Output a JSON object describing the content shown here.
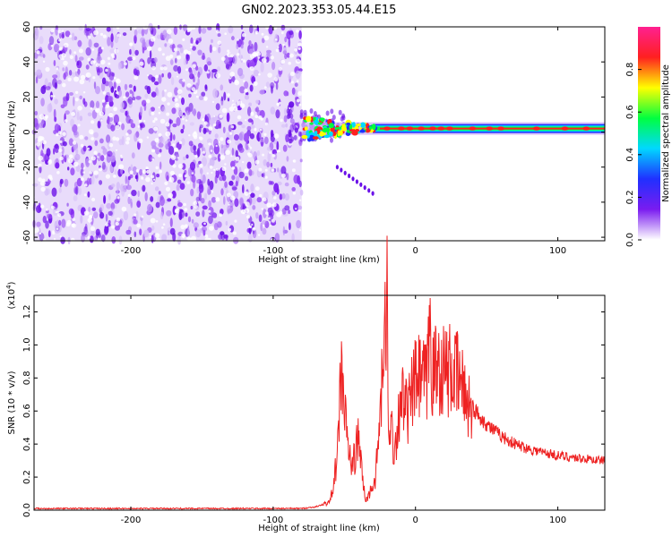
{
  "title": "GN02.2023.353.05.44.E15",
  "colors": {
    "snr_line": "#ee2222",
    "axis": "#000000",
    "spec_noise": "#7a1cf0",
    "spec_signal_core": "#ff2020",
    "spec_signal_edge": "#2060ff"
  },
  "chart_data": [
    {
      "type": "heatmap",
      "title": "GN02.2023.353.05.44.E15",
      "xlabel": "Height of straight line (km)",
      "ylabel": "Frequency (Hz)",
      "xlim": [
        -268,
        133
      ],
      "ylim": [
        -62,
        60
      ],
      "x_ticks": [
        -200,
        -100,
        0,
        100
      ],
      "y_ticks": [
        -60,
        -40,
        -20,
        0,
        20,
        40,
        60
      ],
      "colorbar": {
        "label": "Normalized spectral amplitude",
        "range": [
          0,
          1
        ],
        "ticks": [
          "0.0",
          "0.2",
          "0.4",
          "0.6",
          "0.8"
        ],
        "tick_values": [
          0.0,
          0.2,
          0.4,
          0.6,
          0.8
        ],
        "colormap": [
          "#ffffff",
          "#7a1cf0",
          "#2030ff",
          "#00d8ff",
          "#00ff40",
          "#ffff00",
          "#ff2020",
          "#ff2090"
        ]
      },
      "regions": {
        "noise_x_range": [
          -268,
          -80
        ],
        "noise_freq_range": [
          -62,
          60
        ],
        "signal_onset_x": -80,
        "signal_freq_hz": 2,
        "signal_x_range": [
          -80,
          133
        ],
        "transient_branch": {
          "x": [
            -55,
            -30
          ],
          "freq": [
            -20,
            -35
          ]
        }
      },
      "legend": "colorbar right"
    },
    {
      "type": "line",
      "title": "",
      "xlabel": "Height of straight line (km)",
      "ylabel": "SNR (10 * v/v)",
      "y_scale_label": "(x10^4)",
      "y_scale_base": "(x10",
      "y_scale_exp": "4",
      "y_scale_close": ")",
      "xlim": [
        -268,
        133
      ],
      "ylim": [
        0,
        1.3
      ],
      "x_ticks": [
        -200,
        -100,
        0,
        100
      ],
      "y_ticks": [
        0.0,
        0.2,
        0.4,
        0.6,
        0.8,
        1.0,
        1.2
      ],
      "y_tick_labels": [
        "0.0",
        "0.2",
        "0.4",
        "0.6",
        "0.8",
        "1.0",
        "1.2"
      ],
      "series": [
        {
          "name": "",
          "x": [
            -268,
            -250,
            -200,
            -150,
            -100,
            -80,
            -70,
            -60,
            -55,
            -52,
            -50,
            -48,
            -45,
            -42,
            -40,
            -38,
            -35,
            -30,
            -28,
            -25,
            -22,
            -20,
            -19,
            -18,
            -15,
            -12,
            -10,
            -8,
            -5,
            -2,
            0,
            5,
            8,
            10,
            12,
            14,
            16,
            18,
            20,
            25,
            30,
            35,
            40,
            50,
            60,
            70,
            80,
            90,
            100,
            110,
            120,
            133
          ],
          "values": [
            0.01,
            0.01,
            0.01,
            0.01,
            0.01,
            0.01,
            0.02,
            0.05,
            0.3,
            0.9,
            0.6,
            0.45,
            0.25,
            0.35,
            0.45,
            0.25,
            0.05,
            0.15,
            0.2,
            0.55,
            0.95,
            1.3,
            0.4,
            0.6,
            0.35,
            0.55,
            0.75,
            0.6,
            0.6,
            0.72,
            0.78,
            0.8,
            0.75,
            1.15,
            0.8,
            0.85,
            0.88,
            0.86,
            0.85,
            0.84,
            0.8,
            0.7,
            0.62,
            0.52,
            0.45,
            0.4,
            0.37,
            0.35,
            0.33,
            0.32,
            0.31,
            0.3
          ]
        }
      ],
      "grid": false,
      "legend": "none"
    }
  ]
}
